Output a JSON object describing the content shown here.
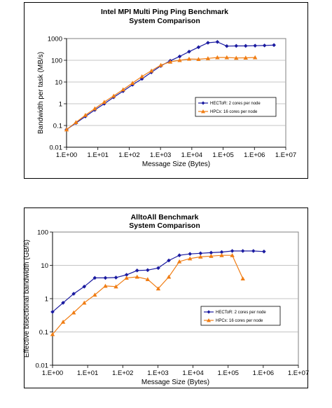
{
  "chart_data": [
    {
      "type": "line",
      "title": "Intel MPI Multi Ping Ping Benchmark",
      "subtitle": "System Comparison",
      "xlabel": "Message Size (Bytes)",
      "ylabel": "Bandwidth per task (MB/s)",
      "xscale": "log",
      "yscale": "log",
      "xlim": [
        1,
        10000000
      ],
      "ylim": [
        0.01,
        1000
      ],
      "xtick_labels": [
        "1.E+00",
        "1.E+01",
        "1.E+02",
        "1.E+03",
        "1.E+04",
        "1.E+05",
        "1.E+06",
        "1.E+07"
      ],
      "ytick_labels": [
        "0.01",
        "0.1",
        "1",
        "10",
        "100",
        "1000"
      ],
      "grid": "horizontal",
      "legend_position": "right",
      "series": [
        {
          "name": "HECToR: 2 cores per node",
          "color": "#1a1aa0",
          "marker": "diamond",
          "x": [
            1,
            2,
            4,
            8,
            16,
            32,
            64,
            128,
            256,
            512,
            1024,
            2048,
            4096,
            8192,
            16384,
            32768,
            65536,
            131072,
            262144,
            524288,
            1048576,
            2097152,
            4194304
          ],
          "y": [
            0.065,
            0.13,
            0.26,
            0.52,
            1.0,
            2.0,
            3.8,
            7.5,
            14,
            28,
            55,
            95,
            150,
            250,
            400,
            640,
            700,
            450,
            460,
            460,
            470,
            480,
            500
          ]
        },
        {
          "name": "HPCx: 16 cores per node",
          "color": "#f07d14",
          "marker": "triangle",
          "x": [
            1,
            2,
            4,
            8,
            16,
            32,
            64,
            128,
            256,
            512,
            1024,
            2048,
            4096,
            8192,
            16384,
            32768,
            65536,
            131072,
            262144,
            524288,
            1048576
          ],
          "y": [
            0.065,
            0.14,
            0.3,
            0.6,
            1.2,
            2.3,
            4.5,
            9,
            18,
            33,
            60,
            85,
            100,
            115,
            112,
            122,
            135,
            135,
            128,
            130,
            135
          ]
        }
      ]
    },
    {
      "type": "line",
      "title": "AlltoAll Benchmark",
      "subtitle": "System Comparison",
      "xlabel": "Message Size (Bytes)",
      "ylabel": "Effective bisectional bandwidth (GB/s)",
      "xscale": "log",
      "yscale": "log",
      "xlim": [
        1,
        10000000
      ],
      "ylim": [
        0.01,
        100
      ],
      "xtick_labels": [
        "1.E+00",
        "1.E+01",
        "1.E+02",
        "1.E+03",
        "1.E+04",
        "1.E+05",
        "1.E+06",
        "1.E+07"
      ],
      "ytick_labels": [
        "0.01",
        "0.1",
        "1",
        "10",
        "100"
      ],
      "grid": "horizontal",
      "legend_position": "right",
      "series": [
        {
          "name": "HECToR: 2 cores per node",
          "color": "#1a1aa0",
          "marker": "diamond",
          "x": [
            1,
            2,
            4,
            8,
            16,
            32,
            64,
            128,
            256,
            512,
            1024,
            2048,
            4096,
            8192,
            16384,
            32768,
            65536,
            131072,
            262144,
            524288,
            1048576
          ],
          "y": [
            0.4,
            0.75,
            1.4,
            2.3,
            4.2,
            4.2,
            4.3,
            5.2,
            7.0,
            7.2,
            8.3,
            14,
            20,
            22,
            23,
            24,
            25,
            27,
            27,
            27,
            26
          ]
        },
        {
          "name": "HPCx: 16 cores per node",
          "color": "#f07d14",
          "marker": "triangle",
          "x": [
            1,
            2,
            4,
            8,
            16,
            32,
            64,
            128,
            256,
            512,
            1024,
            2048,
            4096,
            8192,
            16384,
            32768,
            65536,
            131072,
            262144
          ],
          "y": [
            0.085,
            0.2,
            0.38,
            0.75,
            1.3,
            2.4,
            2.3,
            4.2,
            4.5,
            3.8,
            2.0,
            4.5,
            13,
            16,
            18,
            19,
            20,
            20,
            4.0
          ]
        }
      ]
    }
  ]
}
